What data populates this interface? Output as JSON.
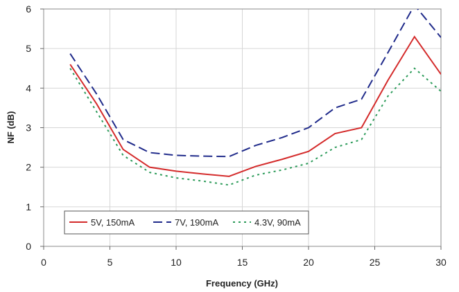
{
  "chart_data": {
    "type": "line",
    "title": "",
    "xlabel": "Frequency (GHz)",
    "ylabel": "NF (dB)",
    "xlim": [
      0,
      30
    ],
    "ylim": [
      0,
      6
    ],
    "xticks": [
      0,
      5,
      10,
      15,
      20,
      25,
      30
    ],
    "yticks": [
      0,
      1,
      2,
      3,
      4,
      5,
      6
    ],
    "grid": "vertical and horizontal",
    "legend_placement": "bottom-left",
    "series": [
      {
        "name": "5V, 150mA",
        "color": "#d42a2a",
        "style": "solid",
        "x": [
          2,
          4,
          6,
          8,
          10,
          12,
          14,
          16,
          18,
          20,
          22,
          24,
          26,
          28,
          30
        ],
        "y": [
          4.6,
          3.6,
          2.45,
          2.0,
          1.9,
          1.83,
          1.77,
          2.02,
          2.2,
          2.4,
          2.85,
          3.0,
          4.2,
          5.3,
          4.35
        ]
      },
      {
        "name": "7V, 190mA",
        "color": "#1f2a8a",
        "style": "dashed",
        "x": [
          2,
          4,
          6,
          8,
          10,
          12,
          14,
          16,
          18,
          20,
          22,
          24,
          26,
          28,
          30
        ],
        "y": [
          4.87,
          3.85,
          2.7,
          2.37,
          2.3,
          2.28,
          2.27,
          2.55,
          2.75,
          3.0,
          3.5,
          3.72,
          4.9,
          6.1,
          5.28
        ]
      },
      {
        "name": "4.3V, 90mA",
        "color": "#2a9a58",
        "style": "dotted",
        "x": [
          2,
          4,
          6,
          8,
          10,
          12,
          14,
          16,
          18,
          20,
          22,
          24,
          26,
          28,
          30
        ],
        "y": [
          4.5,
          3.4,
          2.3,
          1.87,
          1.73,
          1.65,
          1.55,
          1.8,
          1.93,
          2.1,
          2.5,
          2.7,
          3.8,
          4.5,
          3.92
        ]
      }
    ]
  }
}
